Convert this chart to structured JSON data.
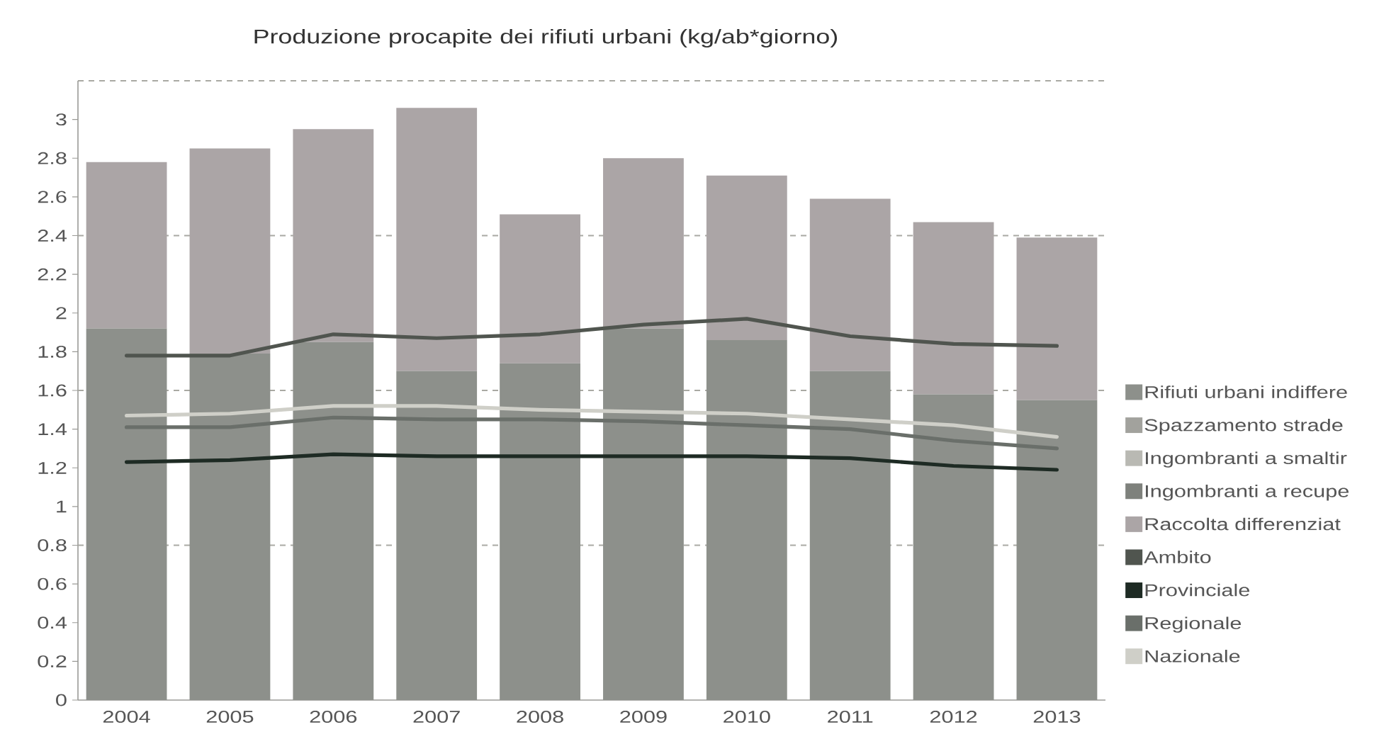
{
  "chart_data": {
    "type": "bar",
    "title": "Produzione procapite dei rifiuti urbani (kg/ab*giorno)",
    "categories": [
      "2004",
      "2005",
      "2006",
      "2007",
      "2008",
      "2009",
      "2010",
      "2011",
      "2012",
      "2013"
    ],
    "stacked": true,
    "series": [
      {
        "name": "Rifiuti urbani indiffere",
        "color": "#8d908b",
        "values": [
          1.92,
          1.79,
          1.85,
          1.7,
          1.74,
          1.92,
          1.86,
          1.7,
          1.58,
          1.55
        ]
      },
      {
        "name": "Spazzamento strade",
        "color": "#a2a29d",
        "values": [
          null,
          null,
          null,
          null,
          null,
          null,
          null,
          null,
          null,
          null
        ]
      },
      {
        "name": "Ingombranti a smaltir",
        "color": "#b9b9b3",
        "values": [
          null,
          null,
          null,
          null,
          null,
          null,
          null,
          null,
          null,
          null
        ]
      },
      {
        "name": "Ingombranti a recupe",
        "color": "#7e817c",
        "values": [
          null,
          null,
          null,
          null,
          null,
          null,
          null,
          null,
          null,
          null
        ]
      },
      {
        "name": "Raccolta differenziat",
        "color": "#aba5a6",
        "values": [
          0.86,
          1.06,
          1.1,
          1.36,
          0.77,
          0.88,
          0.85,
          0.89,
          0.89,
          0.84
        ]
      },
      {
        "name": "Ambito",
        "type": "line",
        "color": "#50554f",
        "values": [
          1.78,
          1.78,
          1.89,
          1.87,
          1.89,
          1.94,
          1.97,
          1.88,
          1.84,
          1.83
        ]
      },
      {
        "name": "Provinciale",
        "type": "line",
        "color": "#1e2b24",
        "values": [
          1.23,
          1.24,
          1.27,
          1.26,
          1.26,
          1.26,
          1.26,
          1.25,
          1.21,
          1.19
        ]
      },
      {
        "name": "Regionale",
        "type": "line",
        "color": "#6a6f6a",
        "values": [
          1.41,
          1.41,
          1.46,
          1.45,
          1.45,
          1.44,
          1.42,
          1.4,
          1.34,
          1.3
        ]
      },
      {
        "name": "Nazionale",
        "type": "line",
        "color": "#cfcfc8",
        "values": [
          1.47,
          1.48,
          1.52,
          1.52,
          1.5,
          1.49,
          1.48,
          1.45,
          1.42,
          1.36
        ]
      }
    ],
    "ylim": [
      0,
      3.2
    ],
    "yticks": [
      0,
      0.2,
      0.4,
      0.6,
      0.8,
      1,
      1.2,
      1.4,
      1.6,
      1.8,
      2,
      2.2,
      2.4,
      2.6,
      2.8,
      3
    ],
    "ref_lines": [
      {
        "axis": "y",
        "value": 0.8,
        "color": "#a9a9a3",
        "line_style": "dashed"
      },
      {
        "axis": "y",
        "value": 1.6,
        "color": "#a9a9a3",
        "line_style": "dashed"
      },
      {
        "axis": "y",
        "value": 2.4,
        "color": "#a9a9a3",
        "line_style": "dashed"
      }
    ],
    "legend": "right",
    "marker": "none"
  }
}
